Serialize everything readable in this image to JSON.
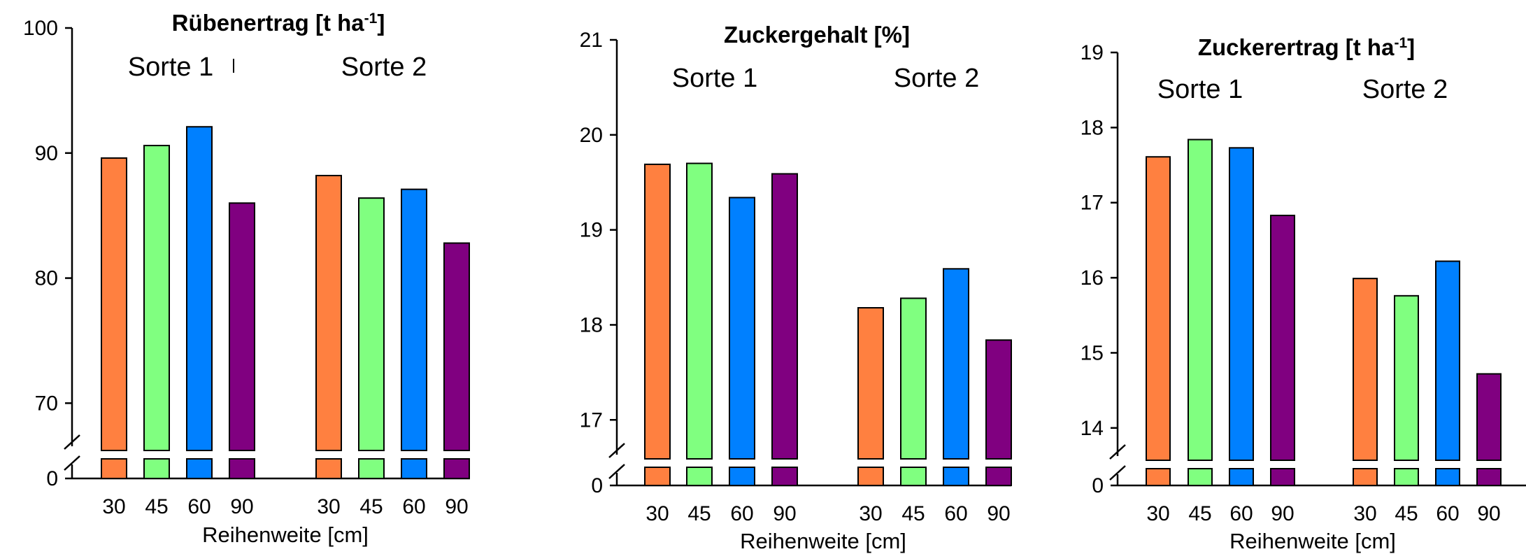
{
  "chart_data": [
    {
      "type": "bar",
      "title": "Rübenertrag [t ha",
      "title_sup": "-1",
      "title_tail": "]",
      "xlabel": "Reihenweite [cm]",
      "groups": [
        "Sorte 1",
        "Sorte 2"
      ],
      "categories": [
        "30",
        "45",
        "60",
        "90"
      ],
      "series": [
        {
          "group": "Sorte 1",
          "values": [
            89.6,
            90.6,
            92.1,
            86.0
          ]
        },
        {
          "group": "Sorte 2",
          "values": [
            88.2,
            86.4,
            87.1,
            82.8
          ]
        }
      ],
      "ylim": [
        67,
        100
      ],
      "yticks": [
        "0",
        "70",
        "80",
        "90",
        "100"
      ],
      "axis_break": true,
      "colors": [
        "#ff8040",
        "#80ff80",
        "#0080ff",
        "#800080"
      ]
    },
    {
      "type": "bar",
      "title": "Zuckergehalt [%]",
      "title_sup": "",
      "title_tail": "",
      "xlabel": "Reihenweite [cm]",
      "groups": [
        "Sorte 1",
        "Sorte 2"
      ],
      "categories": [
        "30",
        "45",
        "60",
        "90"
      ],
      "series": [
        {
          "group": "Sorte 1",
          "values": [
            19.69,
            19.7,
            19.34,
            19.59
          ]
        },
        {
          "group": "Sorte 2",
          "values": [
            18.18,
            18.28,
            18.59,
            17.84
          ]
        }
      ],
      "ylim": [
        16.7,
        21
      ],
      "yticks": [
        "0",
        "17",
        "18",
        "19",
        "20",
        "21"
      ],
      "axis_break": true,
      "colors": [
        "#ff8040",
        "#80ff80",
        "#0080ff",
        "#800080"
      ]
    },
    {
      "type": "bar",
      "title": "Zuckerertrag [t ha",
      "title_sup": "-1",
      "title_tail": "]",
      "xlabel": "Reihenweite [cm]",
      "groups": [
        "Sorte 1",
        "Sorte 2"
      ],
      "categories": [
        "30",
        "45",
        "60",
        "90"
      ],
      "series": [
        {
          "group": "Sorte 1",
          "values": [
            17.61,
            17.84,
            17.73,
            16.83
          ]
        },
        {
          "group": "Sorte 2",
          "values": [
            15.99,
            15.76,
            16.22,
            14.72
          ]
        }
      ],
      "ylim": [
        13.7,
        19
      ],
      "yticks": [
        "0",
        "14",
        "15",
        "16",
        "17",
        "18",
        "19"
      ],
      "axis_break": true,
      "colors": [
        "#ff8040",
        "#80ff80",
        "#0080ff",
        "#800080"
      ]
    }
  ]
}
